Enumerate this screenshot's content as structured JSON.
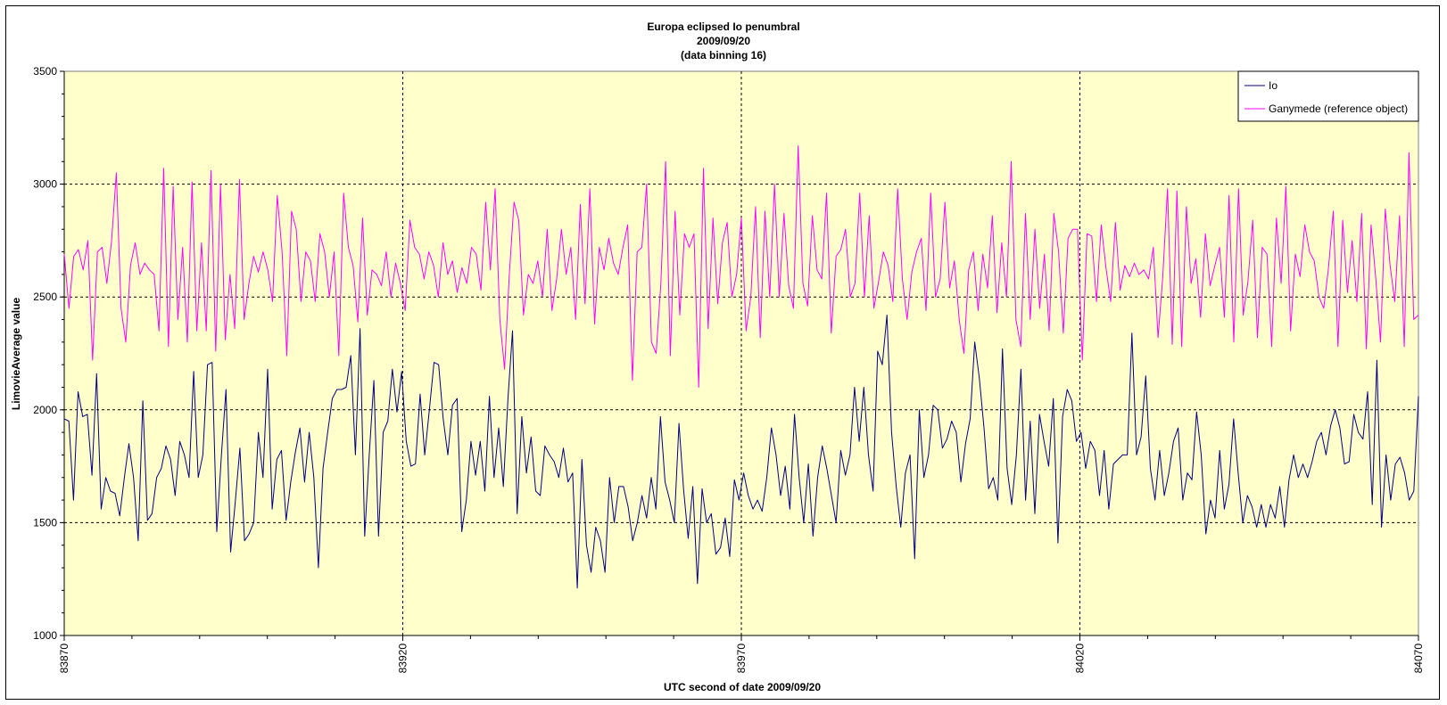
{
  "chart_data": {
    "type": "line",
    "title_lines": [
      "Europa eclipsed Io penumbral",
      "2009/09/20",
      "(data binning 16)"
    ],
    "xlabel": "UTC second  of date 2009/09/20",
    "ylabel": "LimovieAverage value",
    "xlim": [
      83870,
      84070
    ],
    "ylim": [
      1000,
      3500
    ],
    "x_ticks": [
      "83870",
      "83920",
      "83970",
      "84020",
      "84070"
    ],
    "y_ticks": [
      "1000",
      "1500",
      "2000",
      "2500",
      "3000",
      "3500"
    ],
    "x_sample_step": 1,
    "grid": true,
    "legend_position": "top-right",
    "colors": {
      "plot_background": "#ffffcc",
      "io": "#000080",
      "ganymede": "#ff00ff"
    },
    "series": [
      {
        "name": "Io",
        "color": "#000080",
        "values": [
          1960,
          1950,
          1600,
          2080,
          1970,
          1980,
          1710,
          2160,
          1560,
          1700,
          1640,
          1630,
          1530,
          1700,
          1850,
          1700,
          1420,
          2040,
          1510,
          1540,
          1700,
          1740,
          1840,
          1780,
          1620,
          1860,
          1800,
          1700,
          2170,
          1700,
          1800,
          2200,
          2210,
          1460,
          1800,
          2090,
          1370,
          1590,
          1830,
          1420,
          1450,
          1500,
          1900,
          1700,
          2180,
          1560,
          1780,
          1820,
          1510,
          1680,
          1810,
          1920,
          1680,
          1900,
          1700,
          1300,
          1740,
          1900,
          2050,
          2090,
          2090,
          2100,
          2240,
          1800,
          2360,
          1440,
          1800,
          2130,
          1440,
          1900,
          1950,
          2180,
          1990,
          2170,
          1860,
          1750,
          1760,
          2070,
          1800,
          2000,
          2210,
          2200,
          1960,
          1800,
          2020,
          2050,
          1460,
          1600,
          1860,
          1710,
          1860,
          1640,
          2060,
          1700,
          1920,
          1660,
          2050,
          2350,
          1540,
          1970,
          1720,
          1880,
          1640,
          1620,
          1840,
          1800,
          1770,
          1700,
          1830,
          1680,
          1720,
          1210,
          1780,
          1400,
          1280,
          1480,
          1420,
          1280,
          1700,
          1500,
          1660,
          1660,
          1570,
          1420,
          1500,
          1620,
          1520,
          1700,
          1560,
          1970,
          1680,
          1600,
          1500,
          1940,
          1650,
          1430,
          1660,
          1230,
          1650,
          1500,
          1540,
          1360,
          1390,
          1520,
          1350,
          1690,
          1600,
          1720,
          1620,
          1560,
          1600,
          1550,
          1700,
          1920,
          1800,
          1620,
          1750,
          1560,
          1980,
          1700,
          1500,
          1760,
          1440,
          1700,
          1840,
          1740,
          1620,
          1500,
          1820,
          1710,
          1800,
          2100,
          1860,
          2100,
          1800,
          1640,
          2260,
          2200,
          2420,
          1900,
          1660,
          1480,
          1720,
          1800,
          1340,
          2000,
          1700,
          1800,
          2020,
          2000,
          1830,
          1870,
          1950,
          1900,
          1680,
          1850,
          1960,
          2300,
          2140,
          1920,
          1650,
          1700,
          1600,
          2270,
          1740,
          1580,
          1800,
          2180,
          1600,
          1950,
          1540,
          1980,
          1860,
          1750,
          2050,
          1410,
          1970,
          2090,
          2040,
          1860,
          1900,
          1740,
          1860,
          1820,
          1620,
          1820,
          1560,
          1760,
          1780,
          1800,
          1800,
          2340,
          1800,
          1880,
          2150,
          1740,
          1600,
          1820,
          1620,
          1720,
          1860,
          1920,
          1600,
          1720,
          1690,
          1990,
          1800,
          1450,
          1600,
          1520,
          1820,
          1560,
          1670,
          1960,
          1720,
          1500,
          1620,
          1570,
          1480,
          1580,
          1480,
          1580,
          1520,
          1660,
          1480,
          1690,
          1800,
          1700,
          1760,
          1700,
          1770,
          1860,
          1900,
          1800,
          1930,
          2000,
          1920,
          1760,
          1770,
          1980,
          1900,
          1870,
          2080,
          1580,
          2220,
          1480,
          1800,
          1600,
          1760,
          1790,
          1720,
          1600,
          1640,
          2060
        ]
      },
      {
        "name": "Ganymede (reference object)",
        "color": "#ff00ff",
        "values": [
          2690,
          2450,
          2680,
          2710,
          2620,
          2750,
          2220,
          2700,
          2720,
          2560,
          2750,
          3050,
          2450,
          2300,
          2640,
          2740,
          2600,
          2650,
          2620,
          2600,
          2350,
          3070,
          2280,
          2990,
          2400,
          2720,
          2300,
          3010,
          2350,
          2740,
          2350,
          3060,
          2260,
          3000,
          2310,
          2600,
          2360,
          3020,
          2400,
          2560,
          2680,
          2610,
          2700,
          2620,
          2480,
          2950,
          2700,
          2240,
          2880,
          2800,
          2480,
          2700,
          2660,
          2480,
          2780,
          2700,
          2500,
          2700,
          2240,
          2960,
          2720,
          2640,
          2390,
          2850,
          2420,
          2620,
          2600,
          2550,
          2700,
          2500,
          2650,
          2560,
          2440,
          2840,
          2720,
          2690,
          2580,
          2700,
          2640,
          2500,
          2740,
          2600,
          2660,
          2520,
          2630,
          2560,
          2720,
          2690,
          2530,
          2920,
          2620,
          2980,
          2400,
          2180,
          2600,
          2920,
          2840,
          2420,
          2600,
          2560,
          2660,
          2500,
          2800,
          2440,
          2580,
          2800,
          2600,
          2720,
          2400,
          2910,
          2470,
          2980,
          2380,
          2720,
          2620,
          2760,
          2650,
          2600,
          2720,
          2820,
          2130,
          2700,
          2720,
          3000,
          2300,
          2250,
          2560,
          3100,
          2240,
          2880,
          2420,
          2780,
          2720,
          2780,
          2100,
          3070,
          2360,
          2850,
          2470,
          2740,
          2830,
          2500,
          2600,
          2850,
          2350,
          2500,
          2900,
          2320,
          2880,
          2500,
          3000,
          2500,
          2870,
          2550,
          2450,
          3170,
          2560,
          2460,
          2860,
          2620,
          2580,
          2960,
          2340,
          2680,
          2710,
          2800,
          2500,
          2560,
          2960,
          2500,
          2860,
          2450,
          2570,
          2700,
          2640,
          2480,
          2980,
          2580,
          2400,
          2610,
          2700,
          2760,
          2440,
          2960,
          2500,
          2580,
          2920,
          2540,
          2660,
          2400,
          2250,
          2620,
          2700,
          2440,
          2690,
          2540,
          2860,
          2430,
          2740,
          2500,
          3100,
          2400,
          2280,
          2870,
          2400,
          2800,
          2450,
          2690,
          2350,
          2870,
          2700,
          2340,
          2760,
          2800,
          2800,
          2220,
          2780,
          2770,
          2480,
          2820,
          2630,
          2480,
          2830,
          2530,
          2640,
          2590,
          2650,
          2600,
          2620,
          2580,
          2720,
          2320,
          2590,
          2980,
          2290,
          2970,
          2280,
          2900,
          2560,
          2670,
          2410,
          2780,
          2550,
          2640,
          2720,
          2410,
          2950,
          2300,
          2980,
          2420,
          2570,
          2840,
          2320,
          2720,
          2690,
          2280,
          2850,
          2560,
          2990,
          2350,
          2690,
          2590,
          2820,
          2700,
          2660,
          2500,
          2450,
          2630,
          2880,
          2280,
          2840,
          2520,
          2750,
          2480,
          2870,
          2270,
          2820,
          2580,
          2300,
          2890,
          2640,
          2480,
          2860,
          2280,
          3140,
          2400,
          2420
        ]
      }
    ]
  }
}
